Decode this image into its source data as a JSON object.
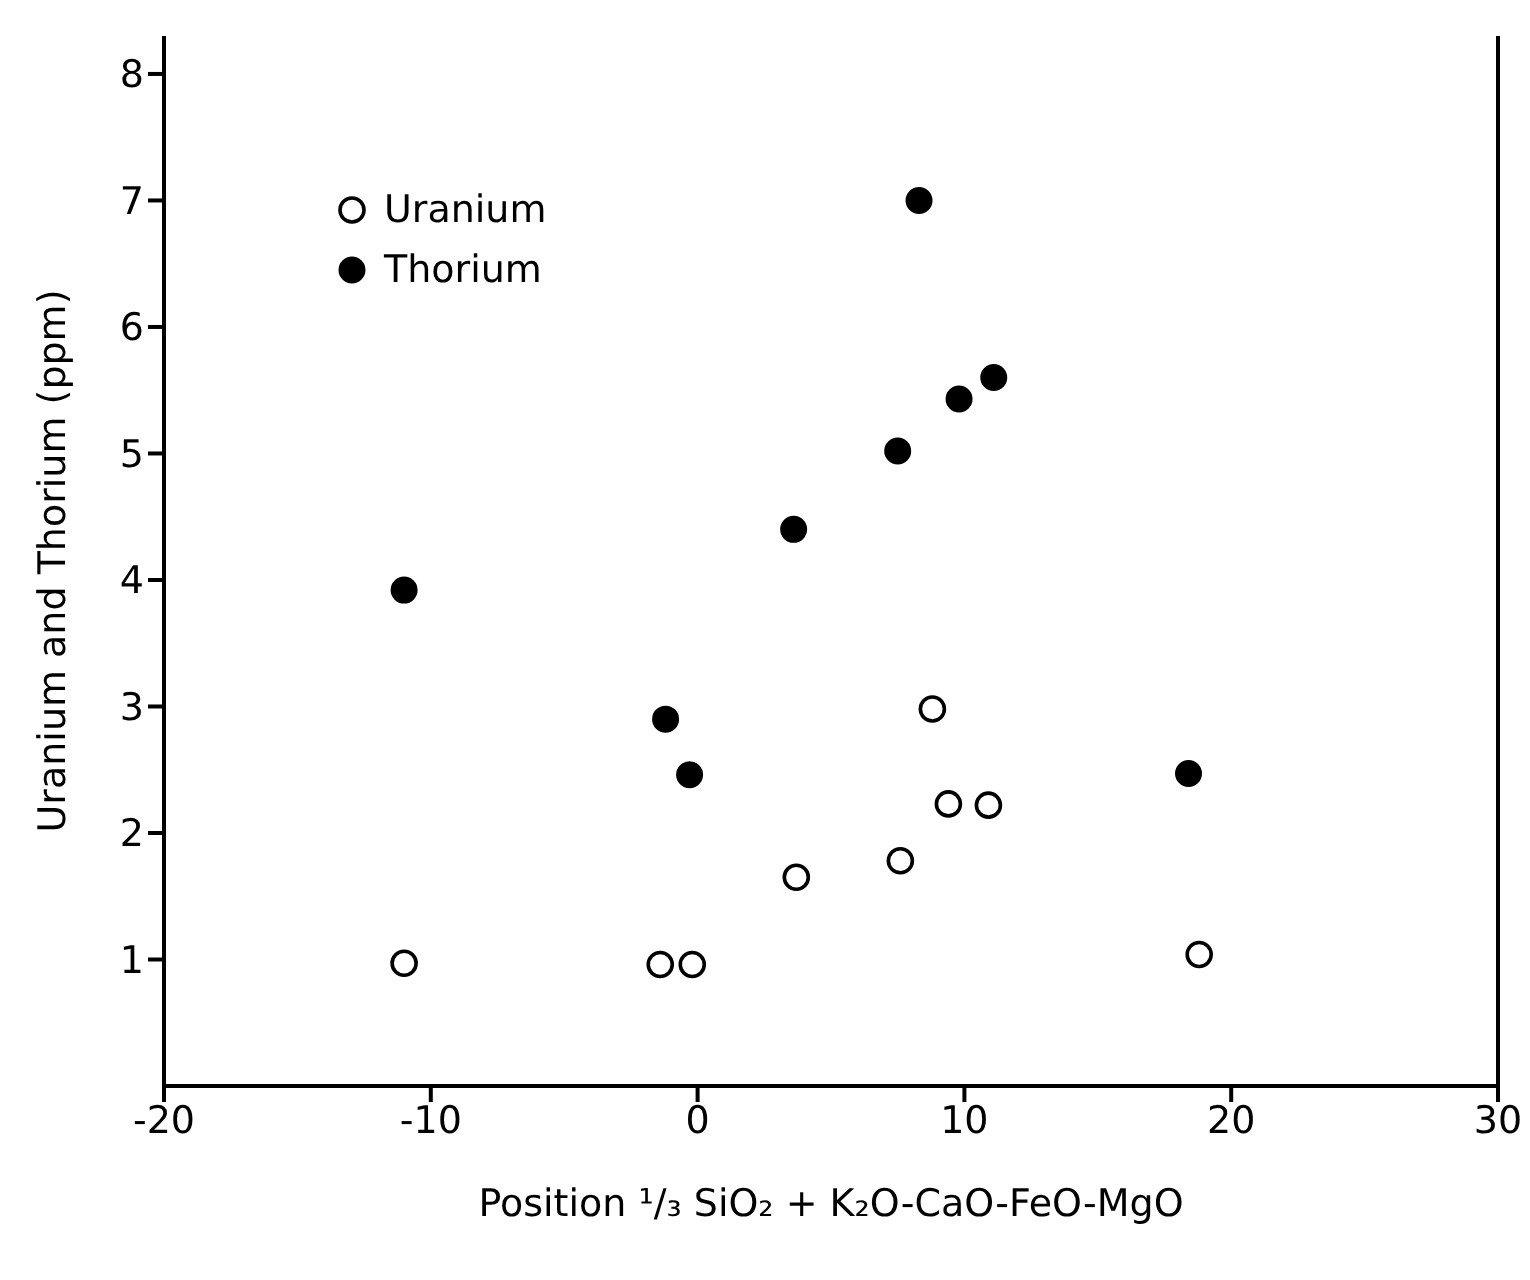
{
  "chart_data": {
    "type": "scatter",
    "xlabel": "Position ¹/₃ SiO₂ + K₂O-CaO-FeO-MgO",
    "ylabel": "Uranium and Thorium (ppm)",
    "xlim": [
      -20,
      30
    ],
    "xticks": [
      -20,
      -10,
      0,
      10,
      20,
      30
    ],
    "ylim": [
      0,
      8.3
    ],
    "yticks": [
      1,
      2,
      3,
      4,
      5,
      6,
      7,
      8
    ],
    "grid": false,
    "legend": "top left",
    "series": [
      {
        "name": "Uranium",
        "color": "#000000",
        "marker": "open circle",
        "x": [
          -11.0,
          -1.4,
          -0.2,
          3.7,
          7.6,
          8.8,
          9.4,
          10.9,
          18.8
        ],
        "values": [
          0.97,
          0.96,
          0.96,
          1.65,
          1.78,
          2.98,
          2.23,
          2.22,
          1.04
        ]
      },
      {
        "name": "Thorium",
        "color": "#000000",
        "marker": "circle",
        "x": [
          8.3,
          11.1,
          9.8,
          7.5,
          3.6,
          -11.0,
          -1.2,
          -0.3,
          18.4
        ],
        "values": [
          7.0,
          5.6,
          5.43,
          5.02,
          4.4,
          3.92,
          2.9,
          2.46,
          2.47
        ]
      }
    ]
  }
}
